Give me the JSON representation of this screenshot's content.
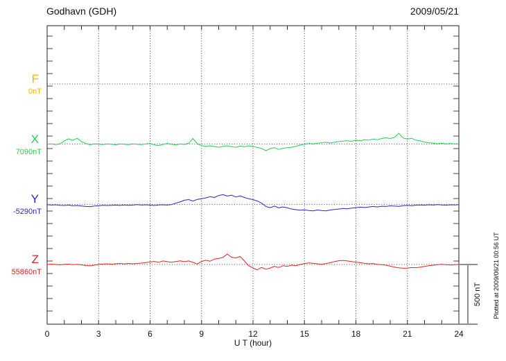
{
  "chart_data": {
    "type": "line",
    "title": "Godhavn (GDH)",
    "date": "2009/05/21",
    "xlabel": "U T (hour)",
    "xlim": [
      0,
      24
    ],
    "xticks": [
      0,
      3,
      6,
      9,
      12,
      15,
      18,
      21,
      24
    ],
    "x_step_hours": 0.25,
    "grid": "dotted vertical lines every 3 hours, dotted horizontal line at each channel baseline",
    "scale_bar": {
      "label": "500 nT",
      "nT": 500
    },
    "plotted_at": "Plotted at 2009/06/21 00:56 UT",
    "value_unit": "nT deviation from channel baseline",
    "series": [
      {
        "name": "F",
        "baseline_label": "0nT",
        "color": "#FFB300",
        "values": []
      },
      {
        "name": "X",
        "baseline_label": "7090nT",
        "color": "#21CF4C",
        "values": [
          0,
          3,
          -4,
          2,
          28,
          45,
          33,
          50,
          22,
          6,
          -5,
          2,
          0,
          -4,
          3,
          0,
          -5,
          2,
          0,
          -3,
          2,
          0,
          -4,
          2,
          6,
          -6,
          -12,
          -2,
          6,
          0,
          -6,
          2,
          -2,
          8,
          48,
          4,
          -12,
          -18,
          -14,
          -20,
          -26,
          -18,
          -14,
          -22,
          -26,
          -16,
          -22,
          -14,
          -20,
          -28,
          -36,
          -55,
          -38,
          -30,
          -45,
          -35,
          -30,
          -26,
          -18,
          -8,
          0,
          6,
          2,
          8,
          12,
          16,
          10,
          16,
          22,
          26,
          30,
          24,
          34,
          28,
          38,
          34,
          44,
          38,
          48,
          54,
          48,
          58,
          92,
          52,
          44,
          50,
          34,
          28,
          18,
          12,
          8,
          4,
          8,
          2,
          6,
          2,
          4
        ]
      },
      {
        "name": "Y",
        "baseline_label": "-5290nT",
        "color": "#2727CE",
        "values": [
          -2,
          -6,
          -4,
          -8,
          -10,
          -6,
          -12,
          -10,
          -14,
          -18,
          -20,
          -14,
          -12,
          -8,
          -10,
          -8,
          -6,
          -9,
          -5,
          -8,
          -6,
          -3,
          -6,
          -4,
          -6,
          -9,
          -5,
          -4,
          -6,
          -2,
          10,
          20,
          35,
          40,
          28,
          42,
          48,
          55,
          65,
          58,
          75,
          82,
          70,
          78,
          62,
          72,
          58,
          48,
          40,
          28,
          10,
          -18,
          -28,
          -15,
          -30,
          -22,
          -30,
          -40,
          -45,
          -50,
          -46,
          -52,
          -55,
          -48,
          -52,
          -55,
          -48,
          -44,
          -40,
          -35,
          -38,
          -32,
          -28,
          -24,
          -27,
          -22,
          -18,
          -22,
          -16,
          -18,
          -13,
          -15,
          -17,
          -11,
          -8,
          -11,
          -7,
          -5,
          -7,
          -4,
          -6,
          -3,
          -5,
          -7,
          -4,
          -5,
          -2
        ]
      },
      {
        "name": "Z",
        "baseline_label": "55860nT",
        "color": "#E32222",
        "values": [
          0,
          3,
          0,
          -3,
          1,
          3,
          -2,
          1,
          -3,
          -9,
          -11,
          -5,
          0,
          4,
          6,
          3,
          6,
          9,
          5,
          9,
          6,
          9,
          12,
          16,
          22,
          26,
          19,
          30,
          24,
          19,
          25,
          31,
          24,
          30,
          18,
          4,
          26,
          36,
          28,
          46,
          52,
          60,
          88,
          62,
          55,
          68,
          30,
          -10,
          -30,
          -45,
          -25,
          -40,
          -30,
          -15,
          -25,
          -10,
          -15,
          -5,
          -10,
          0,
          8,
          13,
          10,
          6,
          2,
          8,
          15,
          25,
          32,
          35,
          30,
          25,
          20,
          15,
          10,
          6,
          8,
          2,
          -2,
          -6,
          -14,
          -22,
          -28,
          -32,
          -30,
          -26,
          -28,
          -22,
          -16,
          -10,
          -6,
          -2,
          2,
          -1,
          -4,
          -1,
          0
        ]
      }
    ]
  }
}
